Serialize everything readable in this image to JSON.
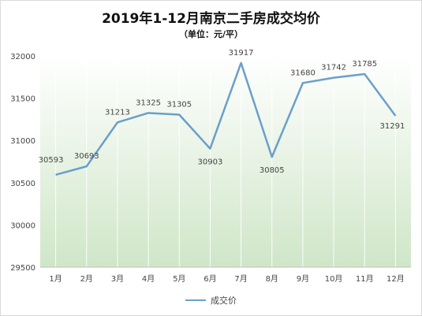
{
  "chart_data": {
    "type": "line",
    "title": "2019年1-12月南京二手房成交均价",
    "subtitle": "（单位：元/平）",
    "categories": [
      "1月",
      "2月",
      "3月",
      "4月",
      "5月",
      "6月",
      "7月",
      "8月",
      "9月",
      "10月",
      "11月",
      "12月"
    ],
    "series": [
      {
        "name": "成交价",
        "values": [
          30593,
          30693,
          31213,
          31325,
          31305,
          30903,
          31917,
          30805,
          31680,
          31742,
          31785,
          31291
        ],
        "data_labels": [
          "30593",
          "30693",
          "31213",
          "31325",
          "31305",
          "30903",
          "31917",
          "30805",
          "31680",
          "31742",
          "31785",
          "31291"
        ],
        "color": "#6a9fcb"
      }
    ],
    "ylim": [
      29500,
      32000
    ],
    "y_ticks": [
      "29500",
      "30000",
      "30500",
      "31000",
      "31500",
      "32000"
    ],
    "grid": "vertical",
    "legend_position": "bottom",
    "plot_background": "green-gradient"
  }
}
